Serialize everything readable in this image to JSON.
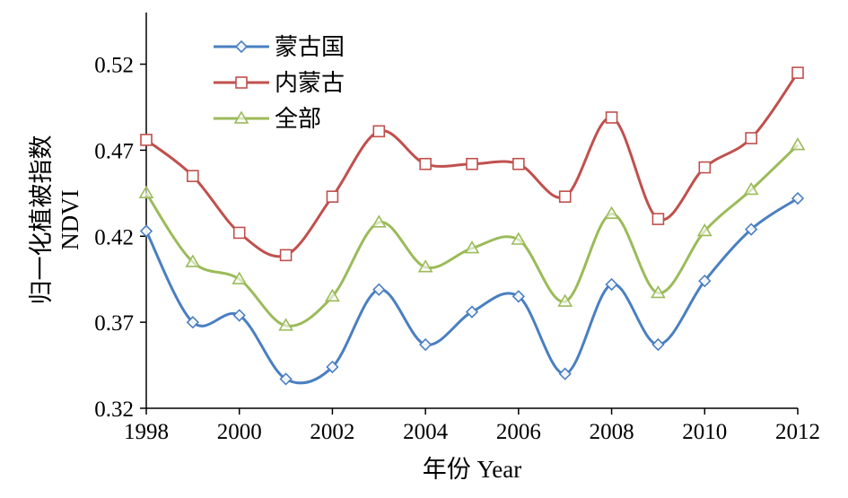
{
  "chart_data": {
    "type": "line",
    "title": "",
    "xlabel": "年份 Year",
    "ylabel_cn": "归一化植被指数",
    "ylabel_en": "NDVI",
    "x": [
      1998,
      1999,
      2000,
      2001,
      2002,
      2003,
      2004,
      2005,
      2006,
      2007,
      2008,
      2009,
      2010,
      2011,
      2012
    ],
    "xticks": [
      "1998",
      "2000",
      "2002",
      "2004",
      "2006",
      "2008",
      "2010",
      "2012"
    ],
    "yticks": [
      "0.32",
      "0.37",
      "0.42",
      "0.47",
      "0.52"
    ],
    "ylim": [
      0.32,
      0.55
    ],
    "xlim": [
      1998,
      2012
    ],
    "grid": false,
    "legend_position": "top-left",
    "series": [
      {
        "name": "蒙古国",
        "color": "#4a7fc1",
        "marker": "diamond",
        "values": [
          0.423,
          0.37,
          0.374,
          0.337,
          0.344,
          0.389,
          0.357,
          0.376,
          0.385,
          0.34,
          0.392,
          0.357,
          0.394,
          0.424,
          0.442
        ]
      },
      {
        "name": "内蒙古",
        "color": "#c0504d",
        "marker": "square",
        "values": [
          0.476,
          0.455,
          0.422,
          0.409,
          0.443,
          0.481,
          0.462,
          0.462,
          0.462,
          0.443,
          0.489,
          0.43,
          0.46,
          0.477,
          0.515
        ]
      },
      {
        "name": "全部",
        "color": "#9bbb59",
        "marker": "triangle",
        "values": [
          0.445,
          0.405,
          0.395,
          0.368,
          0.385,
          0.428,
          0.402,
          0.413,
          0.418,
          0.382,
          0.433,
          0.387,
          0.423,
          0.447,
          0.473
        ]
      }
    ]
  }
}
